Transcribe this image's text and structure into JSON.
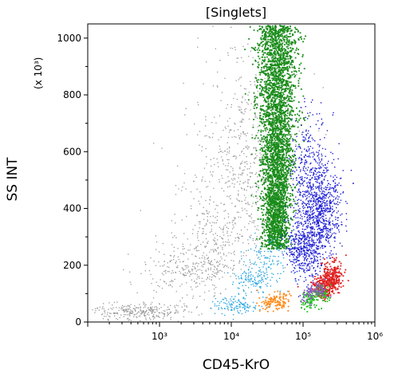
{
  "chart_data": {
    "type": "scatter",
    "title": "[Singlets]",
    "xlabel": "CD45-KrO",
    "ylabel": "SS INT",
    "y_multiplier_label": "(x 10³)",
    "x_scale": "log",
    "xlim": [
      100,
      1000000
    ],
    "ylim": [
      0,
      1050
    ],
    "x_ticks": [
      {
        "value": 1000,
        "label": "10³"
      },
      {
        "value": 10000,
        "label": "10⁴"
      },
      {
        "value": 100000,
        "label": "10⁵"
      },
      {
        "value": 1000000,
        "label": "10⁶"
      }
    ],
    "y_ticks": [
      {
        "value": 0,
        "label": "0"
      },
      {
        "value": 200,
        "label": "200"
      },
      {
        "value": 400,
        "label": "400"
      },
      {
        "value": 600,
        "label": "600"
      },
      {
        "value": 800,
        "label": "800"
      },
      {
        "value": 1000,
        "label": "1000"
      }
    ],
    "grid": false,
    "legend": "none",
    "populations": [
      {
        "color": "#9a9a9a",
        "approx_center": [
          6000,
          250
        ],
        "description_points": [
          [
            500,
            40
          ],
          [
            3000,
            180
          ],
          [
            6000,
            300
          ],
          [
            12000,
            520
          ],
          [
            18000,
            700
          ]
        ]
      },
      {
        "color": "#1a8c1a",
        "approx_center": [
          40000,
          700
        ],
        "description_points": [
          [
            30000,
            300
          ],
          [
            40000,
            600
          ],
          [
            45000,
            900
          ],
          [
            50000,
            1040
          ]
        ]
      },
      {
        "color": "#1f1fd6",
        "approx_center": [
          150000,
          320
        ],
        "description_points": [
          [
            100000,
            250
          ],
          [
            150000,
            350
          ],
          [
            200000,
            420
          ],
          [
            120000,
            520
          ]
        ]
      },
      {
        "color": "#2fa8e0",
        "approx_center": [
          22000,
          150
        ],
        "description_points": [
          [
            12000,
            60
          ],
          [
            20000,
            150
          ],
          [
            30000,
            220
          ]
        ]
      },
      {
        "color": "#ff8c1a",
        "approx_center": [
          45000,
          75
        ],
        "description_points": [
          [
            35000,
            70
          ],
          [
            50000,
            80
          ]
        ]
      },
      {
        "color": "#e02020",
        "approx_center": [
          220000,
          140
        ],
        "description_points": [
          [
            180000,
            120
          ],
          [
            230000,
            150
          ],
          [
            260000,
            170
          ]
        ]
      },
      {
        "color": "#22c022",
        "approx_center": [
          160000,
          90
        ],
        "description_points": [
          [
            120000,
            80
          ],
          [
            170000,
            100
          ]
        ]
      },
      {
        "color": "#8a5cc0",
        "approx_center": [
          140000,
          110
        ],
        "description_points": [
          [
            120000,
            100
          ],
          [
            160000,
            120
          ]
        ]
      }
    ]
  }
}
